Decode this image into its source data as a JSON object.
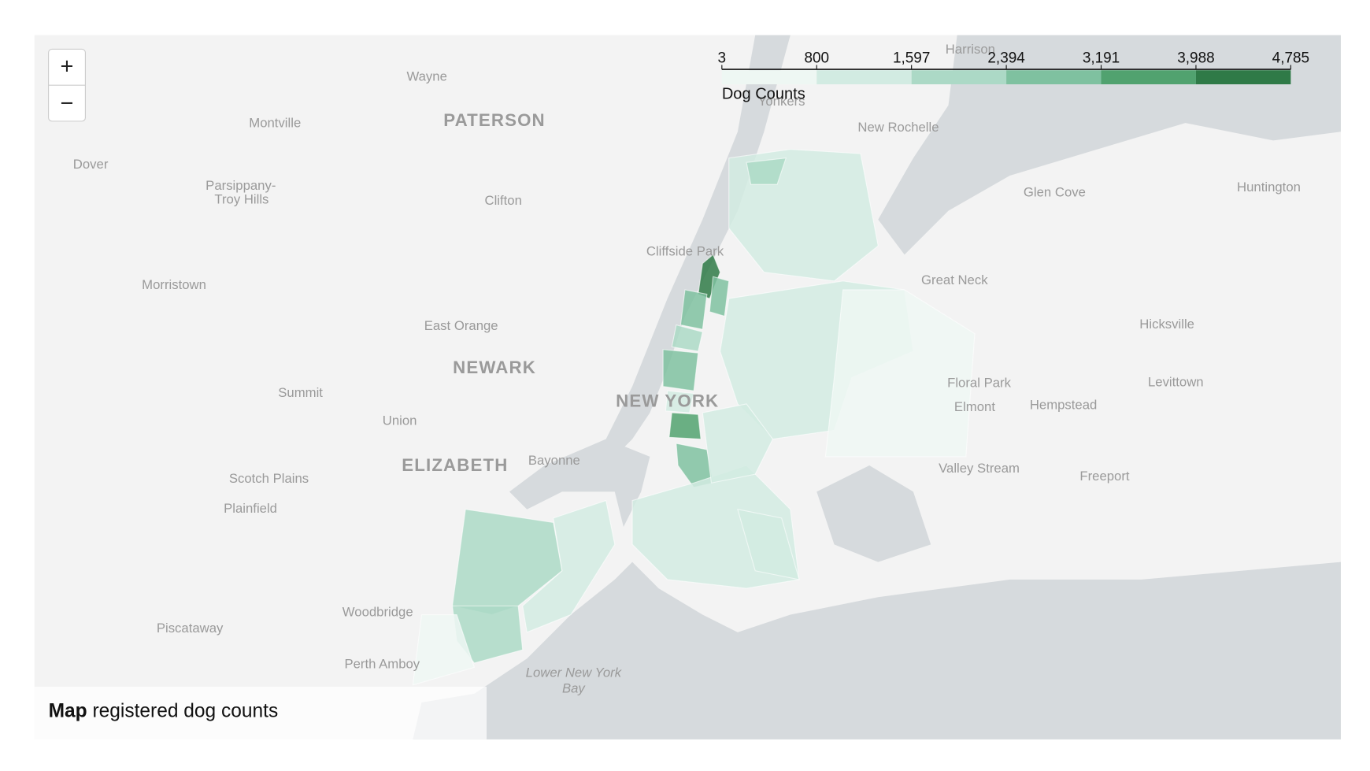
{
  "legend": {
    "title": "Dog Counts",
    "ticks": [
      3,
      800,
      {
        "value": 1597,
        "label": "1,597"
      },
      {
        "value": 2394,
        "label": "2,394"
      },
      {
        "value": 3191,
        "label": "3,191"
      },
      {
        "value": 3988,
        "label": "3,988"
      },
      {
        "value": 4785,
        "label": "4,785"
      }
    ],
    "colors": [
      "#eef7f3",
      "#d2ebe2",
      "#acd9c6",
      "#7fc1a0",
      "#51a26f",
      "#2f7a47"
    ]
  },
  "regions": {
    "values": [
      4500,
      2500,
      3000,
      2000,
      2800,
      1500,
      3400,
      3000,
      800,
      2000,
      1100,
      300,
      900,
      1500,
      1400,
      2100,
      2000,
      900,
      500
    ]
  },
  "places": [
    "Wayne",
    "PATERSON",
    "Montville",
    "Dover",
    "Parsippany-",
    "Troy Hills",
    "Clifton",
    "Morristown",
    "Cliffside Park",
    "East Orange",
    "NEWARK",
    "NEW YORK",
    "Summit",
    "Union",
    "ELIZABETH",
    "Bayonne",
    "Scotch Plains",
    "Plainfield",
    "Woodbridge",
    "Piscataway",
    "Perth Amboy",
    "Lower New York",
    "Bay",
    "Harrison",
    "Yonkers",
    "New Rochelle",
    "Glen Cove",
    "Huntington",
    "Great Neck",
    "Hicksville",
    "Floral Park",
    "Levittown",
    "Elmont",
    "Hempstead",
    "Valley Stream",
    "Freeport"
  ],
  "caption": {
    "bold": "Map",
    "text": "registered dog counts"
  },
  "zoom": {
    "in": "+",
    "out": "−"
  }
}
